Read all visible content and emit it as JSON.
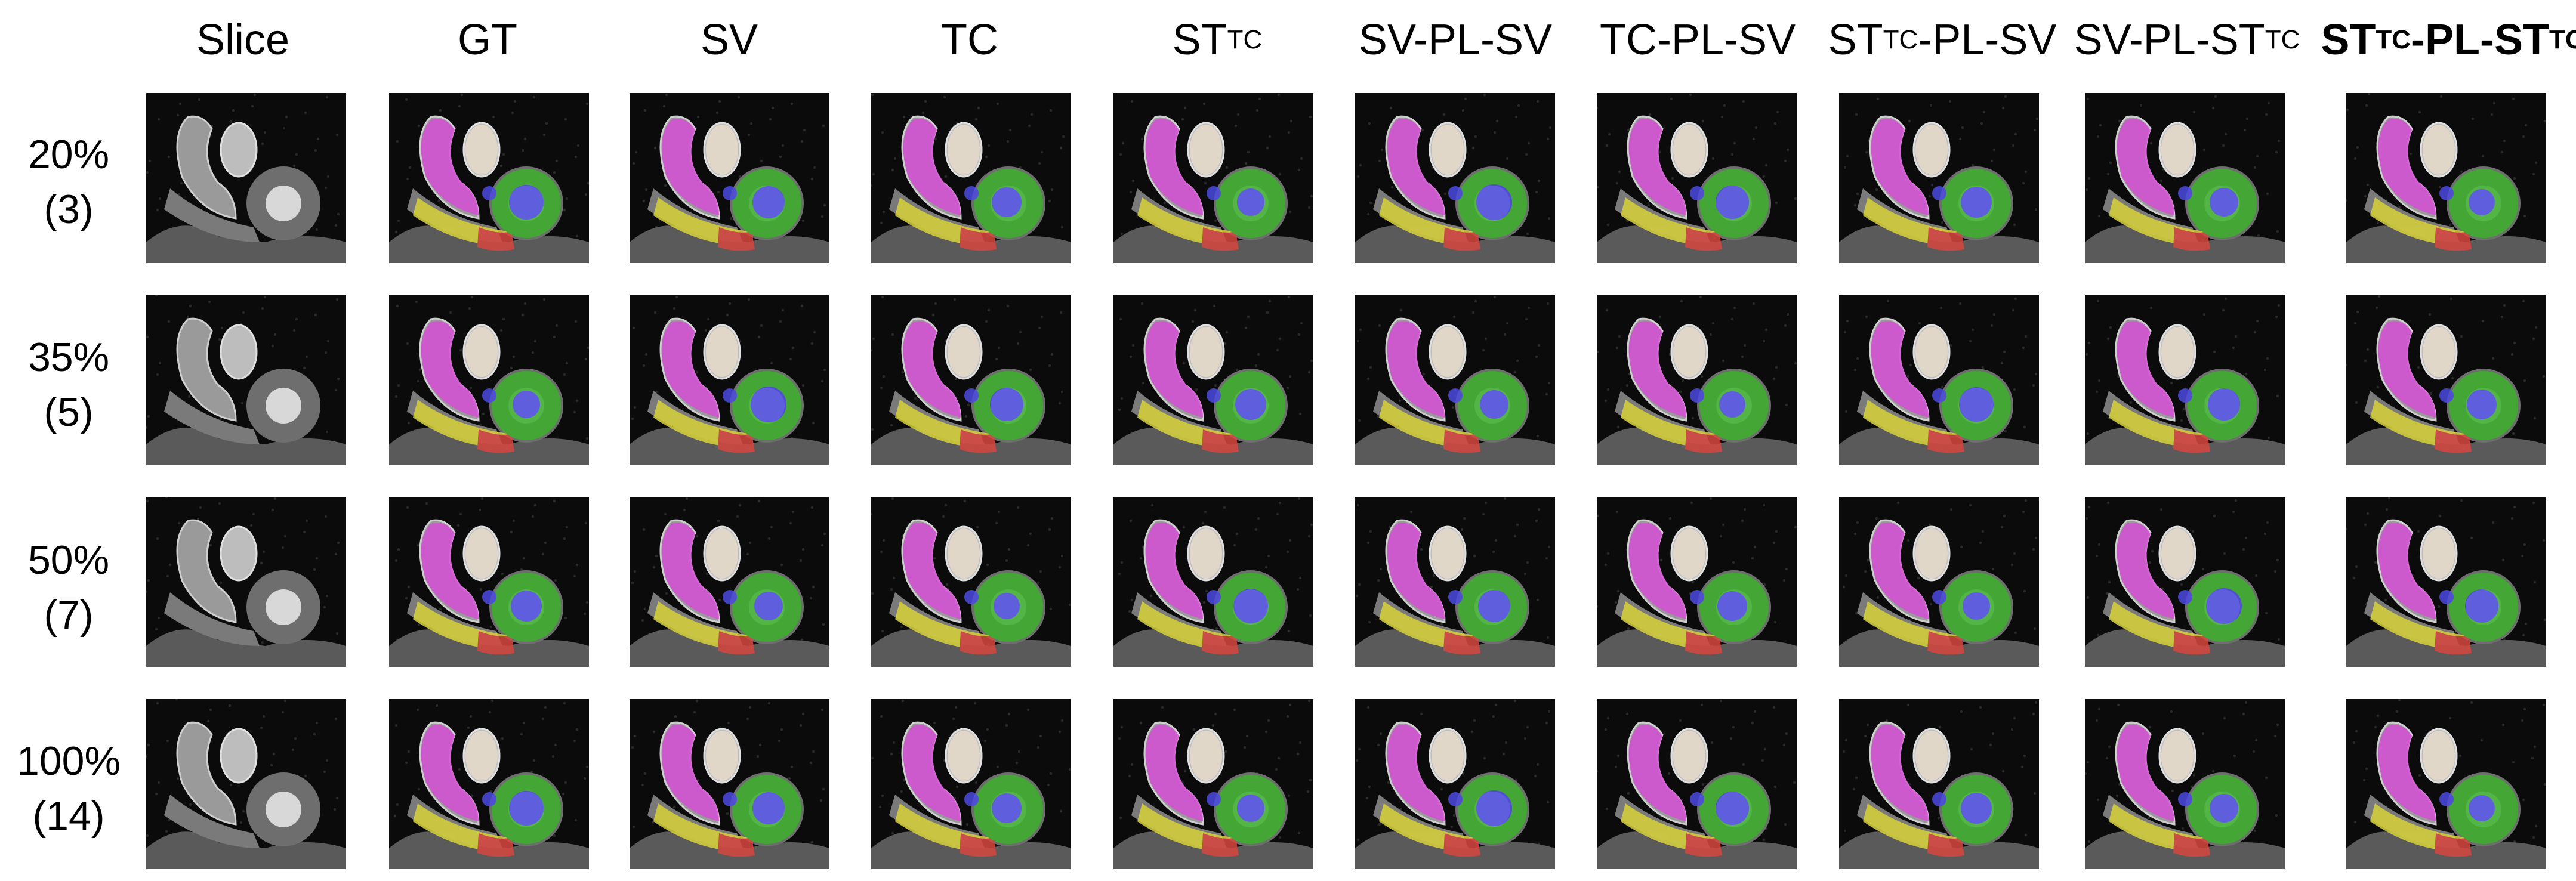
{
  "columns": [
    {
      "id": "slice",
      "parts": [
        {
          "t": "Slice"
        }
      ]
    },
    {
      "id": "gt",
      "parts": [
        {
          "t": "GT"
        }
      ]
    },
    {
      "id": "sv",
      "parts": [
        {
          "t": "SV"
        }
      ]
    },
    {
      "id": "tc",
      "parts": [
        {
          "t": "TC"
        }
      ]
    },
    {
      "id": "st-tc",
      "parts": [
        {
          "t": "ST"
        },
        {
          "t": "TC",
          "sub": true
        }
      ]
    },
    {
      "id": "sv-pl-sv",
      "parts": [
        {
          "t": "SV-PL-SV"
        }
      ]
    },
    {
      "id": "tc-pl-sv",
      "parts": [
        {
          "t": "TC-PL-SV"
        }
      ]
    },
    {
      "id": "st-tc-pl-sv",
      "parts": [
        {
          "t": "ST"
        },
        {
          "t": "TC",
          "sub": true
        },
        {
          "t": "-PL-SV"
        }
      ]
    },
    {
      "id": "sv-pl-st-tc",
      "parts": [
        {
          "t": "SV-PL-ST"
        },
        {
          "t": "TC",
          "sub": true
        }
      ]
    },
    {
      "id": "st-tc-pl-st-tc",
      "bold": true,
      "parts": [
        {
          "t": "ST"
        },
        {
          "t": "TC",
          "sub": true
        },
        {
          "t": "-PL-ST"
        },
        {
          "t": "TC",
          "sub": true
        }
      ]
    }
  ],
  "rows": [
    {
      "id": "20",
      "label_top": "20%",
      "label_bottom": "(3)"
    },
    {
      "id": "35",
      "label_top": "35%",
      "label_bottom": "(5)"
    },
    {
      "id": "50",
      "label_top": "50%",
      "label_bottom": "(7)"
    },
    {
      "id": "100",
      "label_top": "100%",
      "label_bottom": "(14)"
    }
  ],
  "segmentation_colors": {
    "magenta": "#d64fd6",
    "cream": "#e8dccb",
    "green": "#3cb02c",
    "blue": "#4a4ae0",
    "yellow": "#d8d23a",
    "red": "#d8473f"
  }
}
